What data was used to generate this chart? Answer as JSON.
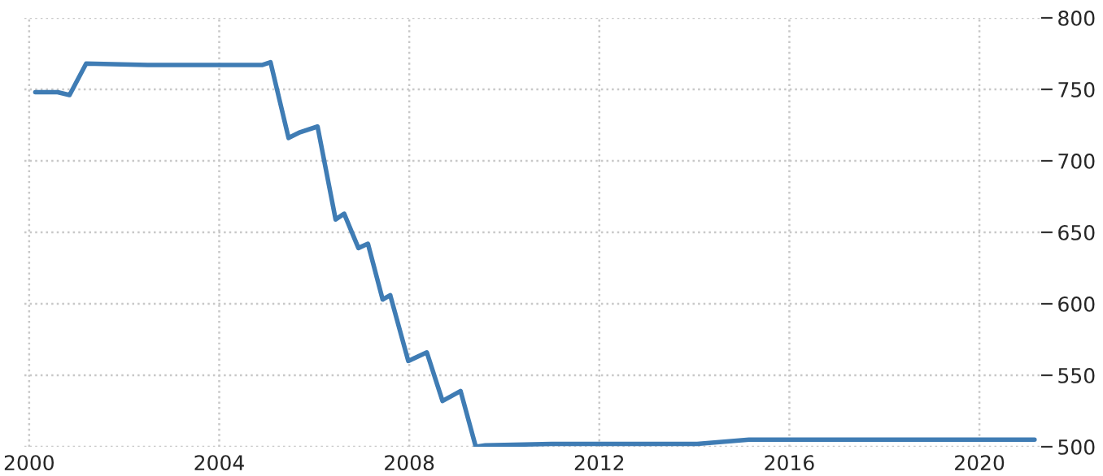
{
  "chart_data": {
    "type": "line",
    "x": [
      2000.13,
      2000.6,
      2000.85,
      2001.2,
      2002.5,
      2004.0,
      2004.9,
      2005.08,
      2005.46,
      2005.7,
      2006.07,
      2006.45,
      2006.63,
      2006.93,
      2007.13,
      2007.44,
      2007.6,
      2007.98,
      2008.37,
      2008.7,
      2009.08,
      2009.4,
      2009.6,
      2011.0,
      2014.06,
      2015.15,
      2018.0,
      2021.16
    ],
    "series": [
      {
        "color": "#3f7cb4",
        "values": [
          748,
          748,
          746,
          768,
          767,
          767,
          767,
          769,
          716,
          720,
          724,
          659,
          663,
          639,
          642,
          603,
          606,
          560,
          566,
          532,
          539,
          500,
          501,
          502,
          502,
          505,
          505,
          505
        ]
      }
    ],
    "xlim": [
      1999.9,
      2021.3
    ],
    "xticks": [
      2000,
      2004,
      2008,
      2012,
      2016,
      2020
    ],
    "ylim": [
      500,
      800
    ],
    "yticks": [
      500,
      550,
      600,
      650,
      700,
      750,
      800
    ],
    "grid": true,
    "legend": false
  }
}
